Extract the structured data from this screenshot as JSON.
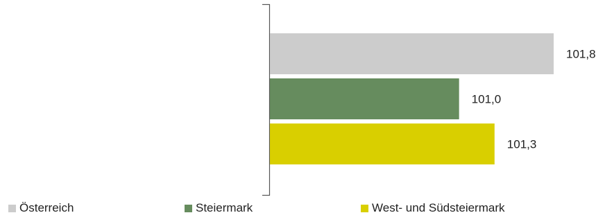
{
  "chart_data": {
    "type": "bar",
    "orientation": "horizontal",
    "categories": [
      "Österreich",
      "Steiermark",
      "West- und Südsteiermark"
    ],
    "values": [
      101.8,
      101.0,
      101.3
    ],
    "value_labels": [
      "101,8",
      "101,0",
      "101,3"
    ],
    "colors": [
      "#cccccc",
      "#668c5e",
      "#d9cf00"
    ],
    "xlim": [
      99.4,
      101.8
    ],
    "grid": false,
    "legend": {
      "position": "bottom",
      "entries": [
        "Österreich",
        "Steiermark",
        "West- und Südsteiermark"
      ]
    }
  }
}
